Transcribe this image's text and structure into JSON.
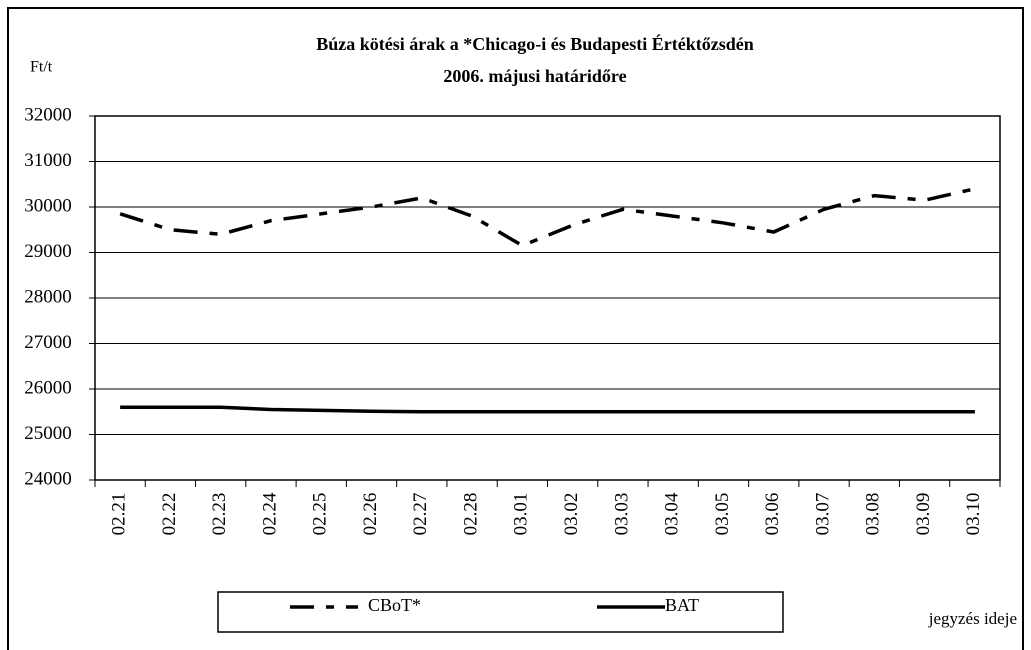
{
  "chart_data": {
    "type": "line",
    "title": [
      "Búza kötési árak a *Chicago-i és Budapesti Értéktőzsdén",
      "2006. májusi határidőre"
    ],
    "y_label": "Ft/t",
    "x_label": "jegyzés ideje",
    "categories": [
      "02.21",
      "02.22",
      "02.23",
      "02.24",
      "02.25",
      "02.26",
      "02.27",
      "02.28",
      "03.01",
      "03.02",
      "03.03",
      "03.04",
      "03.05",
      "03.06",
      "03.07",
      "03.08",
      "03.09",
      "03.10"
    ],
    "series": [
      {
        "name": "CBoT*",
        "color": "#000000",
        "linestyle": "dash-dot",
        "values": [
          29850,
          29500,
          29400,
          29700,
          29850,
          30000,
          30200,
          29800,
          29150,
          29600,
          29950,
          29800,
          29650,
          29450,
          29950,
          30250,
          30150,
          30400
        ]
      },
      {
        "name": "BAT",
        "color": "#000000",
        "linestyle": "solid",
        "values": [
          25600,
          25600,
          25600,
          25550,
          25530,
          25510,
          25500,
          25500,
          25500,
          25500,
          25500,
          25500,
          25500,
          25500,
          25500,
          25500,
          25500,
          25500
        ]
      }
    ],
    "ylim": [
      24000,
      32000
    ],
    "yticks": [
      24000,
      25000,
      26000,
      27000,
      28000,
      29000,
      30000,
      31000,
      32000
    ],
    "grid": true
  }
}
